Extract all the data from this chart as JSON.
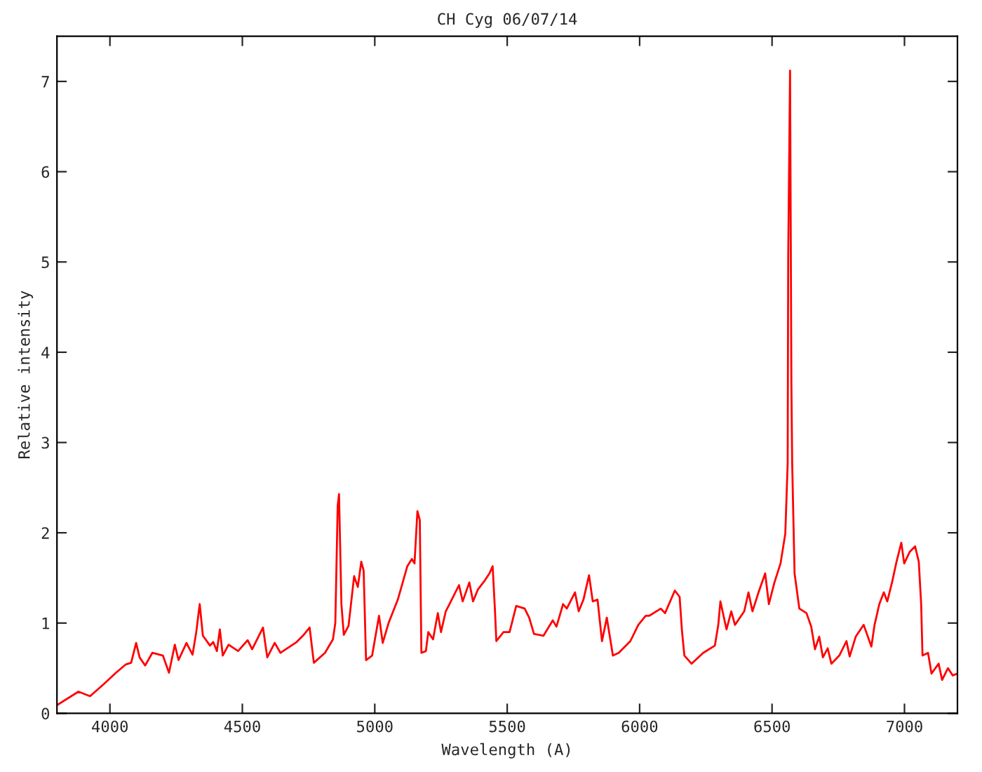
{
  "chart_data": {
    "type": "line",
    "title": "CH Cyg 06/07/14",
    "xlabel": "Wavelength (A)",
    "ylabel": "Relative intensity",
    "xlim": [
      3800,
      7200
    ],
    "xticks": [
      4000,
      4500,
      5000,
      5500,
      6000,
      6500,
      7000
    ],
    "ylim": [
      0,
      7.5
    ],
    "yticks": [
      0,
      1,
      2,
      3,
      4,
      5,
      6,
      7
    ],
    "grid": false,
    "marker": "none",
    "line_style": "solid",
    "series": [
      {
        "color": "#ff0000",
        "x": [
          3800,
          3881,
          3925,
          3979,
          4023,
          4059,
          4080,
          4099,
          4112,
          4133,
          4160,
          4200,
          4223,
          4245,
          4259,
          4289,
          4312,
          4326,
          4339,
          4351,
          4378,
          4390,
          4404,
          4415,
          4426,
          4448,
          4484,
          4520,
          4537,
          4578,
          4594,
          4622,
          4644,
          4705,
          4732,
          4754,
          4770,
          4812,
          4842,
          4851,
          4860,
          4865,
          4874,
          4883,
          4901,
          4922,
          4936,
          4949,
          4958,
          4967,
          4990,
          5016,
          5030,
          5052,
          5087,
          5123,
          5140,
          5150,
          5161,
          5170,
          5176,
          5193,
          5202,
          5220,
          5238,
          5250,
          5268,
          5282,
          5318,
          5332,
          5357,
          5371,
          5389,
          5415,
          5433,
          5445,
          5454,
          5459,
          5486,
          5509,
          5534,
          5566,
          5583,
          5601,
          5637,
          5672,
          5686,
          5711,
          5725,
          5756,
          5770,
          5788,
          5809,
          5823,
          5841,
          5858,
          5876,
          5899,
          5921,
          5965,
          5995,
          6023,
          6036,
          6080,
          6096,
          6133,
          6151,
          6160,
          6169,
          6196,
          6240,
          6284,
          6297,
          6305,
          6328,
          6346,
          6360,
          6395,
          6411,
          6426,
          6449,
          6474,
          6488,
          6509,
          6532,
          6550,
          6559,
          6561,
          6568,
          6573,
          6576,
          6585,
          6603,
          6630,
          6648,
          6662,
          6678,
          6692,
          6710,
          6724,
          6754,
          6781,
          6793,
          6816,
          6846,
          6875,
          6887,
          6905,
          6922,
          6935,
          6953,
          6970,
          6988,
          6999,
          7020,
          7040,
          7054,
          7063,
          7068,
          7089,
          7102,
          7129,
          7142,
          7164,
          7182,
          7200
        ],
        "values": [
          0.09,
          0.24,
          0.19,
          0.33,
          0.45,
          0.54,
          0.56,
          0.78,
          0.62,
          0.53,
          0.67,
          0.64,
          0.45,
          0.76,
          0.59,
          0.78,
          0.65,
          0.9,
          1.21,
          0.86,
          0.75,
          0.79,
          0.69,
          0.93,
          0.64,
          0.76,
          0.69,
          0.81,
          0.71,
          0.95,
          0.62,
          0.78,
          0.67,
          0.79,
          0.87,
          0.95,
          0.56,
          0.67,
          0.82,
          1.0,
          2.3,
          2.43,
          1.21,
          0.87,
          0.97,
          1.52,
          1.4,
          1.68,
          1.58,
          0.59,
          0.64,
          1.08,
          0.78,
          1.0,
          1.26,
          1.63,
          1.71,
          1.66,
          2.24,
          2.14,
          0.67,
          0.69,
          0.9,
          0.82,
          1.11,
          0.9,
          1.13,
          1.21,
          1.42,
          1.24,
          1.45,
          1.24,
          1.37,
          1.47,
          1.55,
          1.63,
          1.13,
          0.8,
          0.9,
          0.9,
          1.19,
          1.16,
          1.06,
          0.88,
          0.86,
          1.03,
          0.96,
          1.21,
          1.16,
          1.34,
          1.13,
          1.26,
          1.53,
          1.24,
          1.26,
          0.8,
          1.06,
          0.64,
          0.67,
          0.8,
          0.98,
          1.08,
          1.08,
          1.16,
          1.11,
          1.36,
          1.29,
          0.91,
          0.64,
          0.55,
          0.67,
          0.75,
          0.98,
          1.24,
          0.93,
          1.13,
          0.98,
          1.13,
          1.34,
          1.13,
          1.34,
          1.55,
          1.21,
          1.45,
          1.66,
          1.99,
          2.77,
          5.05,
          7.12,
          3.65,
          2.77,
          1.55,
          1.16,
          1.11,
          0.96,
          0.71,
          0.85,
          0.62,
          0.72,
          0.55,
          0.64,
          0.8,
          0.63,
          0.85,
          0.98,
          0.74,
          0.98,
          1.21,
          1.34,
          1.24,
          1.45,
          1.68,
          1.89,
          1.66,
          1.79,
          1.85,
          1.68,
          1.21,
          0.64,
          0.67,
          0.44,
          0.55,
          0.37,
          0.5,
          0.42,
          0.44
        ]
      }
    ]
  }
}
